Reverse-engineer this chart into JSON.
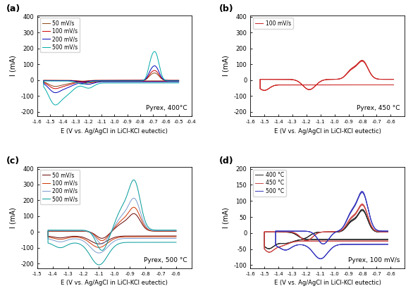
{
  "title_a": "Pyrex, 400°C",
  "title_b": "Pyrex, 450 °C",
  "title_c": "Pyrex, 500 °C",
  "title_d": "Pyrex, 100 mV/s",
  "xlabel": "E (V vs. Ag/AgCl in LiCl-KCl eutectic)",
  "ylabel": "I (mA)",
  "panel_labels": [
    "(a)",
    "(b)",
    "(c)",
    "(d)"
  ],
  "legend_a": [
    "50 mV/s",
    "100 mV/s",
    "200 mV/s",
    "500 mV/s"
  ],
  "legend_b": [
    "100 mV/s"
  ],
  "legend_c": [
    "50 mV/s",
    "100 mV/s",
    "200 mV/s",
    "500 mV/s"
  ],
  "legend_d": [
    "400 °C",
    "450 °C",
    "500 °C"
  ],
  "colors_a": [
    "#8B4513",
    "#cc0000",
    "#0000bb",
    "#00aaaa"
  ],
  "colors_b": [
    "#cc2222"
  ],
  "colors_c": [
    "#660000",
    "#cc3300",
    "#7799cc",
    "#009999"
  ],
  "colors_d": [
    "#222222",
    "#cc4444",
    "#3333bb"
  ],
  "xlim_a": [
    -1.6,
    -0.4
  ],
  "xlim_b": [
    -1.6,
    -0.5
  ],
  "xlim_c": [
    -1.5,
    -0.5
  ],
  "xlim_d": [
    -1.6,
    -0.5
  ],
  "ylim_a": [
    -230,
    410
  ],
  "ylim_b": [
    -230,
    410
  ],
  "ylim_c": [
    -230,
    410
  ],
  "ylim_d": [
    -110,
    205
  ],
  "figsize": [
    5.86,
    4.33
  ],
  "dpi": 100
}
